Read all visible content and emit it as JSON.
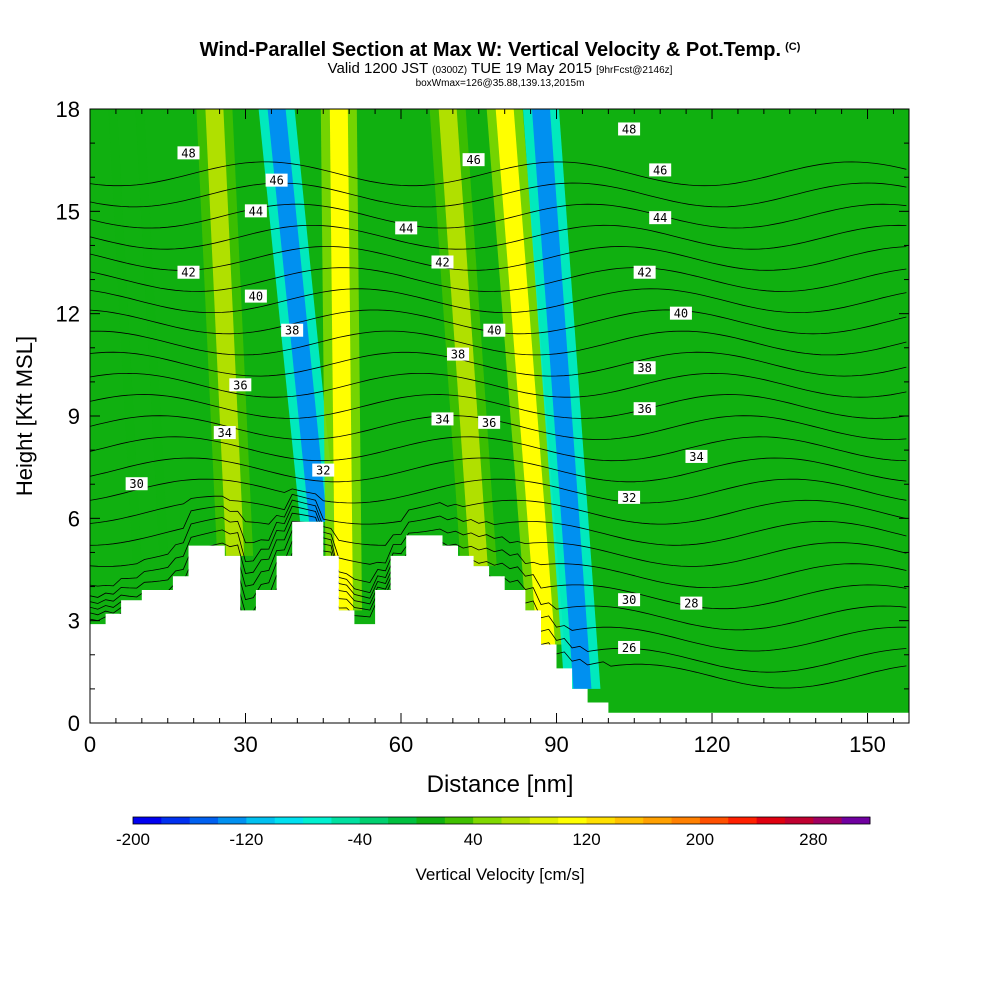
{
  "chart_data": {
    "type": "heatmap",
    "title": "Wind-Parallel Section at Max W: Vertical Velocity & Pot.Temp.",
    "title_mark": "(C)",
    "subtitle": {
      "valid": "Valid 1200 JST",
      "zulu": "(0300Z)",
      "date": "TUE 19 May 2015",
      "fcst": "[9hrFcst@2146z]"
    },
    "subtitle2": "boxWmax=126@35.88,139.13,2015m",
    "xlabel": "Distance [nm]",
    "ylabel": "Height [Kft MSL]",
    "xlim": [
      0,
      158
    ],
    "ylim": [
      0,
      18
    ],
    "xticks": [
      0,
      30,
      60,
      90,
      120,
      150
    ],
    "yticks": [
      0,
      3,
      6,
      9,
      12,
      15,
      18
    ],
    "colorbar": {
      "label": "Vertical Velocity [cm/s]",
      "ticks": [
        -200,
        -120,
        -40,
        40,
        120,
        200,
        280
      ],
      "min": -200,
      "max": 300,
      "step": 20,
      "colors": [
        "#0000f0",
        "#0030f0",
        "#0060f0",
        "#0090f0",
        "#00c0f0",
        "#00e0f0",
        "#00f0d0",
        "#00e0a0",
        "#00d070",
        "#00c040",
        "#10b010",
        "#40c000",
        "#80d800",
        "#b0e000",
        "#e0f000",
        "#ffff00",
        "#ffe000",
        "#ffc000",
        "#ffa000",
        "#ff8000",
        "#ff5000",
        "#ff2000",
        "#e00010",
        "#c00030",
        "#a00060",
        "#7000a0"
      ]
    },
    "updrafts": [
      {
        "x": 12,
        "top_x": 7,
        "value": 10
      },
      {
        "x": 28,
        "top_x": 24,
        "value": 60
      },
      {
        "x": 44,
        "top_x": 36,
        "value": -140
      },
      {
        "x": 49,
        "top_x": 48,
        "value": 110
      },
      {
        "x": 75,
        "top_x": 69,
        "value": 60
      },
      {
        "x": 88,
        "top_x": 80,
        "value": 110
      },
      {
        "x": 95,
        "top_x": 87,
        "value": -130
      }
    ],
    "terrain": [
      [
        0,
        2.9
      ],
      [
        3,
        2.9
      ],
      [
        3,
        3.2
      ],
      [
        6,
        3.2
      ],
      [
        6,
        3.6
      ],
      [
        10,
        3.6
      ],
      [
        10,
        3.9
      ],
      [
        16,
        3.9
      ],
      [
        16,
        4.3
      ],
      [
        19,
        4.3
      ],
      [
        19,
        5.2
      ],
      [
        26,
        5.2
      ],
      [
        26,
        4.9
      ],
      [
        29,
        4.9
      ],
      [
        29,
        3.3
      ],
      [
        32,
        3.3
      ],
      [
        32,
        3.9
      ],
      [
        36,
        3.9
      ],
      [
        36,
        4.9
      ],
      [
        39,
        4.9
      ],
      [
        39,
        5.9
      ],
      [
        45,
        5.9
      ],
      [
        45,
        4.9
      ],
      [
        48,
        4.9
      ],
      [
        48,
        3.3
      ],
      [
        51,
        3.3
      ],
      [
        51,
        2.9
      ],
      [
        55,
        2.9
      ],
      [
        55,
        3.9
      ],
      [
        58,
        3.9
      ],
      [
        58,
        4.9
      ],
      [
        61,
        4.9
      ],
      [
        61,
        5.5
      ],
      [
        68,
        5.5
      ],
      [
        68,
        5.2
      ],
      [
        71,
        5.2
      ],
      [
        71,
        4.9
      ],
      [
        74,
        4.9
      ],
      [
        74,
        4.6
      ],
      [
        77,
        4.6
      ],
      [
        77,
        4.3
      ],
      [
        80,
        4.3
      ],
      [
        80,
        3.9
      ],
      [
        84,
        3.9
      ],
      [
        84,
        3.3
      ],
      [
        87,
        3.3
      ],
      [
        87,
        2.3
      ],
      [
        90,
        2.3
      ],
      [
        90,
        1.6
      ],
      [
        93,
        1.6
      ],
      [
        93,
        1.0
      ],
      [
        96,
        1.0
      ],
      [
        96,
        0.6
      ],
      [
        100,
        0.6
      ],
      [
        100,
        0.3
      ],
      [
        158,
        0.3
      ]
    ],
    "isentropes": [
      {
        "label": "26",
        "label_x": 104,
        "label_y": 2.2
      },
      {
        "label": "28",
        "label_x": 116,
        "label_y": 3.5
      },
      {
        "label": "30",
        "label_x": 9,
        "label_y": 7.0
      },
      {
        "label": "30",
        "label_x": 104,
        "label_y": 3.6
      },
      {
        "label": "32",
        "label_x": 45,
        "label_y": 7.4
      },
      {
        "label": "32",
        "label_x": 104,
        "label_y": 6.6
      },
      {
        "label": "34",
        "label_x": 26,
        "label_y": 8.5
      },
      {
        "label": "34",
        "label_x": 68,
        "label_y": 8.9
      },
      {
        "label": "34",
        "label_x": 117,
        "label_y": 7.8
      },
      {
        "label": "36",
        "label_x": 29,
        "label_y": 9.9
      },
      {
        "label": "36",
        "label_x": 77,
        "label_y": 8.8
      },
      {
        "label": "36",
        "label_x": 107,
        "label_y": 9.2
      },
      {
        "label": "38",
        "label_x": 39,
        "label_y": 11.5
      },
      {
        "label": "38",
        "label_x": 71,
        "label_y": 10.8
      },
      {
        "label": "38",
        "label_x": 107,
        "label_y": 10.4
      },
      {
        "label": "40",
        "label_x": 32,
        "label_y": 12.5
      },
      {
        "label": "40",
        "label_x": 78,
        "label_y": 11.5
      },
      {
        "label": "40",
        "label_x": 114,
        "label_y": 12.0
      },
      {
        "label": "42",
        "label_x": 19,
        "label_y": 13.2
      },
      {
        "label": "42",
        "label_x": 68,
        "label_y": 13.5
      },
      {
        "label": "42",
        "label_x": 107,
        "label_y": 13.2
      },
      {
        "label": "44",
        "label_x": 32,
        "label_y": 15.0
      },
      {
        "label": "44",
        "label_x": 61,
        "label_y": 14.5
      },
      {
        "label": "44",
        "label_x": 110,
        "label_y": 14.8
      },
      {
        "label": "46",
        "label_x": 36,
        "label_y": 15.9
      },
      {
        "label": "46",
        "label_x": 74,
        "label_y": 16.5
      },
      {
        "label": "46",
        "label_x": 110,
        "label_y": 16.2
      },
      {
        "label": "48",
        "label_x": 19,
        "label_y": 16.7
      },
      {
        "label": "48",
        "label_x": 104,
        "label_y": 17.4
      }
    ]
  }
}
